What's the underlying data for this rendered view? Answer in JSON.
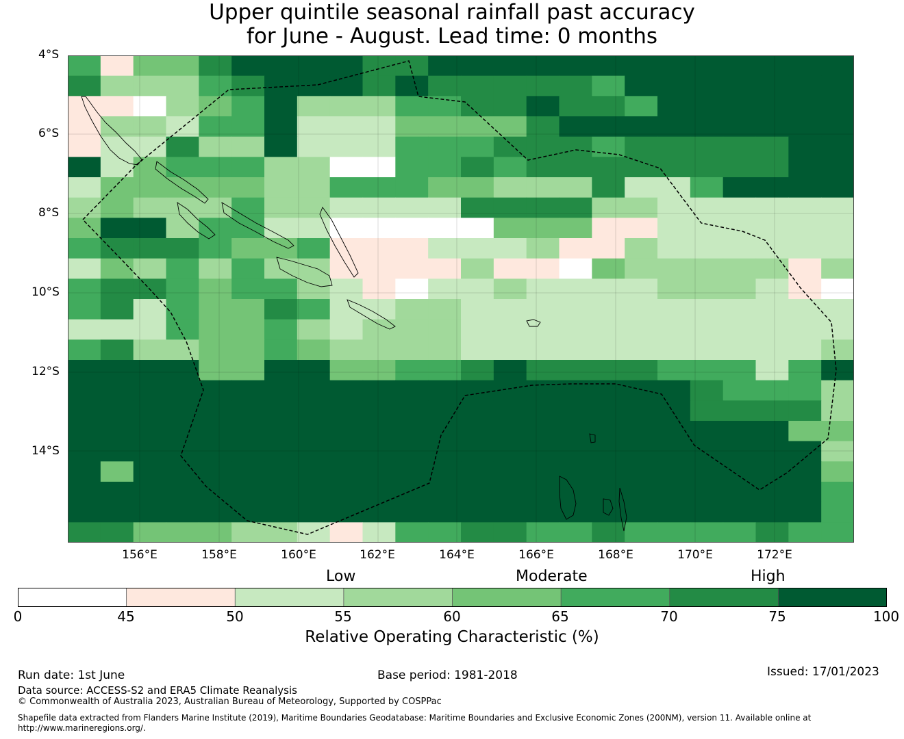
{
  "title": {
    "line1": "Upper quintile seasonal rainfall past accuracy",
    "line2": "for June - August. Lead time: 0 months"
  },
  "map": {
    "lat_labels": [
      "4°S",
      "6°S",
      "8°S",
      "10°S",
      "12°S",
      "14°S"
    ],
    "lon_labels": [
      "156°E",
      "158°E",
      "160°E",
      "162°E",
      "164°E",
      "166°E",
      "168°E",
      "170°E",
      "172°E"
    ],
    "grid_levels": [
      [
        6,
        2,
        5,
        5,
        7,
        8,
        8,
        8,
        8,
        7,
        7,
        8,
        8,
        8,
        8,
        8,
        8,
        8,
        8,
        8,
        8,
        8,
        8,
        8
      ],
      [
        7,
        4,
        4,
        4,
        6,
        7,
        8,
        8,
        8,
        7,
        8,
        7,
        7,
        7,
        7,
        7,
        6,
        8,
        8,
        8,
        8,
        8,
        8,
        8
      ],
      [
        2,
        2,
        1,
        4,
        5,
        6,
        8,
        4,
        4,
        4,
        6,
        6,
        7,
        7,
        8,
        7,
        7,
        6,
        8,
        8,
        8,
        8,
        8,
        8
      ],
      [
        2,
        4,
        4,
        3,
        6,
        6,
        8,
        3,
        3,
        3,
        5,
        5,
        5,
        5,
        7,
        8,
        8,
        8,
        8,
        8,
        8,
        8,
        8,
        8
      ],
      [
        2,
        3,
        3,
        7,
        4,
        4,
        8,
        3,
        3,
        3,
        6,
        6,
        6,
        7,
        7,
        7,
        6,
        7,
        7,
        7,
        7,
        7,
        8,
        8
      ],
      [
        8,
        3,
        5,
        6,
        6,
        6,
        4,
        4,
        1,
        1,
        6,
        6,
        7,
        6,
        7,
        7,
        7,
        7,
        7,
        7,
        7,
        7,
        8,
        8
      ],
      [
        3,
        5,
        5,
        5,
        5,
        5,
        4,
        4,
        6,
        6,
        6,
        5,
        5,
        4,
        4,
        4,
        7,
        3,
        3,
        6,
        8,
        8,
        8,
        8
      ],
      [
        4,
        5,
        4,
        4,
        4,
        6,
        4,
        4,
        3,
        3,
        3,
        3,
        7,
        7,
        7,
        7,
        4,
        4,
        3,
        3,
        3,
        3,
        3,
        3
      ],
      [
        5,
        8,
        8,
        4,
        6,
        6,
        3,
        3,
        1,
        1,
        1,
        1,
        1,
        5,
        5,
        5,
        2,
        2,
        3,
        3,
        3,
        3,
        3,
        3
      ],
      [
        6,
        7,
        7,
        7,
        6,
        5,
        5,
        6,
        2,
        2,
        2,
        3,
        3,
        3,
        4,
        2,
        2,
        4,
        3,
        3,
        3,
        3,
        3,
        3
      ],
      [
        3,
        5,
        4,
        6,
        4,
        6,
        4,
        4,
        2,
        2,
        2,
        2,
        4,
        2,
        2,
        1,
        5,
        4,
        4,
        4,
        4,
        4,
        2,
        4
      ],
      [
        6,
        7,
        7,
        6,
        5,
        6,
        6,
        4,
        3,
        2,
        1,
        3,
        3,
        4,
        3,
        3,
        3,
        3,
        4,
        4,
        4,
        3,
        2,
        1
      ],
      [
        6,
        7,
        3,
        6,
        5,
        5,
        7,
        6,
        3,
        3,
        4,
        4,
        3,
        3,
        3,
        3,
        3,
        3,
        3,
        3,
        3,
        3,
        3,
        3
      ],
      [
        3,
        3,
        3,
        6,
        5,
        5,
        6,
        4,
        3,
        4,
        4,
        4,
        3,
        3,
        3,
        3,
        3,
        3,
        3,
        3,
        3,
        3,
        3,
        3
      ],
      [
        6,
        7,
        4,
        4,
        5,
        5,
        6,
        5,
        4,
        4,
        4,
        4,
        3,
        3,
        3,
        3,
        3,
        3,
        3,
        3,
        3,
        3,
        3,
        4
      ],
      [
        8,
        8,
        8,
        8,
        5,
        5,
        8,
        8,
        5,
        5,
        6,
        6,
        7,
        8,
        7,
        7,
        7,
        7,
        6,
        6,
        6,
        3,
        6,
        8
      ],
      [
        8,
        8,
        8,
        8,
        8,
        8,
        8,
        8,
        8,
        8,
        8,
        8,
        8,
        8,
        8,
        8,
        8,
        8,
        8,
        7,
        6,
        6,
        6,
        4
      ],
      [
        8,
        8,
        8,
        8,
        8,
        8,
        8,
        8,
        8,
        8,
        8,
        8,
        8,
        8,
        8,
        8,
        8,
        8,
        8,
        7,
        7,
        7,
        7,
        4
      ],
      [
        8,
        8,
        8,
        8,
        8,
        8,
        8,
        8,
        8,
        8,
        8,
        8,
        8,
        8,
        8,
        8,
        8,
        8,
        8,
        8,
        8,
        8,
        5,
        5
      ],
      [
        8,
        8,
        8,
        8,
        8,
        8,
        8,
        8,
        8,
        8,
        8,
        8,
        8,
        8,
        8,
        8,
        8,
        8,
        8,
        8,
        8,
        8,
        8,
        4
      ],
      [
        8,
        5,
        8,
        8,
        8,
        8,
        8,
        8,
        8,
        8,
        8,
        8,
        8,
        8,
        8,
        8,
        8,
        8,
        8,
        8,
        8,
        8,
        8,
        5
      ],
      [
        8,
        8,
        8,
        8,
        8,
        8,
        8,
        8,
        8,
        8,
        8,
        8,
        8,
        8,
        8,
        8,
        8,
        8,
        8,
        8,
        8,
        8,
        8,
        6
      ],
      [
        8,
        8,
        8,
        8,
        8,
        8,
        8,
        8,
        8,
        8,
        8,
        8,
        8,
        8,
        8,
        8,
        8,
        8,
        8,
        8,
        8,
        8,
        8,
        6
      ],
      [
        7,
        7,
        5,
        5,
        5,
        4,
        4,
        3,
        2,
        3,
        6,
        6,
        7,
        7,
        6,
        6,
        7,
        6,
        6,
        6,
        6,
        7,
        6,
        6
      ]
    ]
  },
  "colorbar": {
    "categories": [
      "Low",
      "Moderate",
      "High"
    ],
    "ticks": [
      "0",
      "45",
      "50",
      "55",
      "60",
      "65",
      "70",
      "75",
      "100"
    ],
    "colors": [
      "#ffffff",
      "#fee8de",
      "#c7e9c0",
      "#a1d99b",
      "#74c476",
      "#41ab5d",
      "#238b45",
      "#005a32"
    ],
    "label": "Relative Operating Characteristic (%)"
  },
  "footer": {
    "run_date": "Run date: 1st June",
    "base_period": "Base period: 1981-2018",
    "issued": "Issued: 17/01/2023",
    "data_source": "Data source: ACCESS-S2 and ERA5 Climate Reanalysis",
    "copyright": "© Commonwealth of Australia 2023, Australian Bureau of Meteorology, Supported by COSPPac",
    "shapefile_line1": "Shapefile data extracted from Flanders Marine Institute (2019), Maritime Boundaries Geodatabase: Maritime Boundaries and Exclusive Economic Zones (200NM), version 11. Available online at",
    "shapefile_line2": "http://www.marineregions.org/."
  }
}
